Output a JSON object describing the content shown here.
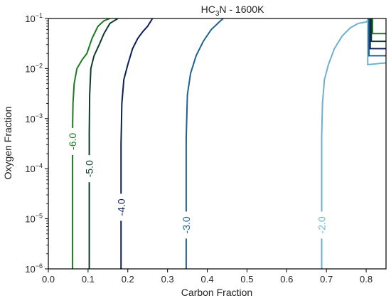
{
  "chart_data": {
    "type": "line",
    "title_main": "HC",
    "title_sub": "3",
    "title_rest": "N - 1600K",
    "xlabel": "Carbon Fraction",
    "ylabel": "Oxygen Fraction",
    "xlim": [
      0.0,
      0.85
    ],
    "ylim": [
      1e-06,
      0.1
    ],
    "yscale": "log",
    "grid": false,
    "xticks": [
      0.0,
      0.1,
      0.2,
      0.3,
      0.4,
      0.5,
      0.6,
      0.7,
      0.8
    ],
    "xtick_labels": [
      "0.0",
      "0.1",
      "0.2",
      "0.3",
      "0.4",
      "0.5",
      "0.6",
      "0.7",
      "0.8"
    ],
    "yticks": [
      {
        "base": "10",
        "exp": "−6",
        "value": 1e-06
      },
      {
        "base": "10",
        "exp": "−5",
        "value": 1e-05
      },
      {
        "base": "10",
        "exp": "−4",
        "value": 0.0001
      },
      {
        "base": "10",
        "exp": "−3",
        "value": 0.001
      },
      {
        "base": "10",
        "exp": "−2",
        "value": 0.01
      },
      {
        "base": "10",
        "exp": "−1",
        "value": 0.1
      }
    ],
    "series": [
      {
        "label": "-6.0",
        "color": "#1e7a1e",
        "label_x": 0.061,
        "label_y": 0.00035,
        "points": [
          [
            0.061,
            1e-06
          ],
          [
            0.061,
            0.0006
          ],
          [
            0.062,
            0.002
          ],
          [
            0.065,
            0.005
          ],
          [
            0.072,
            0.01
          ],
          [
            0.085,
            0.015
          ],
          [
            0.097,
            0.02
          ],
          [
            0.11,
            0.04
          ],
          [
            0.125,
            0.07
          ],
          [
            0.14,
            0.09
          ],
          [
            0.155,
            0.1
          ]
        ]
      },
      {
        "label": "-5.0",
        "color": "#0e3b2e",
        "label_x": 0.103,
        "label_y": 0.0001,
        "points": [
          [
            0.103,
            1e-06
          ],
          [
            0.103,
            0.0005
          ],
          [
            0.104,
            0.003
          ],
          [
            0.107,
            0.01
          ],
          [
            0.115,
            0.018
          ],
          [
            0.128,
            0.03
          ],
          [
            0.14,
            0.05
          ],
          [
            0.155,
            0.08
          ],
          [
            0.175,
            0.1
          ]
        ]
      },
      {
        "label": "-4.0",
        "color": "#0c1e5a",
        "label_x": 0.183,
        "label_y": 1.7e-05,
        "points": [
          [
            0.183,
            1e-06
          ],
          [
            0.183,
            0.0003
          ],
          [
            0.185,
            0.002
          ],
          [
            0.19,
            0.006
          ],
          [
            0.2,
            0.012
          ],
          [
            0.212,
            0.025
          ],
          [
            0.225,
            0.04
          ],
          [
            0.238,
            0.055
          ],
          [
            0.25,
            0.07
          ],
          [
            0.262,
            0.1
          ]
        ]
      },
      {
        "label": "-3.0",
        "color": "#1d6290",
        "label_x": 0.347,
        "label_y": 7.5e-06,
        "points": [
          [
            0.347,
            1e-06
          ],
          [
            0.347,
            0.0004
          ],
          [
            0.35,
            0.003
          ],
          [
            0.358,
            0.008
          ],
          [
            0.372,
            0.018
          ],
          [
            0.39,
            0.035
          ],
          [
            0.41,
            0.06
          ],
          [
            0.43,
            0.085
          ],
          [
            0.44,
            0.1
          ]
        ]
      },
      {
        "label": "-2.0",
        "color": "#6cb0cf",
        "label_x": 0.688,
        "label_y": 7.5e-06,
        "points": [
          [
            0.688,
            1e-06
          ],
          [
            0.688,
            0.0004
          ],
          [
            0.69,
            0.002
          ],
          [
            0.695,
            0.006
          ],
          [
            0.705,
            0.012
          ],
          [
            0.72,
            0.025
          ],
          [
            0.74,
            0.045
          ],
          [
            0.76,
            0.065
          ],
          [
            0.78,
            0.08
          ],
          [
            0.8,
            0.085
          ],
          [
            0.803,
            0.09
          ]
        ]
      }
    ],
    "corner_series": [
      {
        "color": "#6cb0cf",
        "points": [
          [
            0.85,
            0.013
          ],
          [
            0.804,
            0.012
          ],
          [
            0.804,
            0.1
          ]
        ]
      },
      {
        "color": "#1d6290",
        "points": [
          [
            0.85,
            0.018
          ],
          [
            0.807,
            0.018
          ],
          [
            0.807,
            0.1
          ]
        ]
      },
      {
        "color": "#0c1e5a",
        "points": [
          [
            0.85,
            0.025
          ],
          [
            0.81,
            0.025
          ],
          [
            0.81,
            0.1
          ]
        ]
      },
      {
        "color": "#0e3b2e",
        "points": [
          [
            0.85,
            0.035
          ],
          [
            0.813,
            0.035
          ],
          [
            0.813,
            0.1
          ]
        ]
      },
      {
        "color": "#1e7a1e",
        "points": [
          [
            0.85,
            0.05
          ],
          [
            0.816,
            0.05
          ],
          [
            0.816,
            0.1
          ]
        ]
      }
    ]
  }
}
